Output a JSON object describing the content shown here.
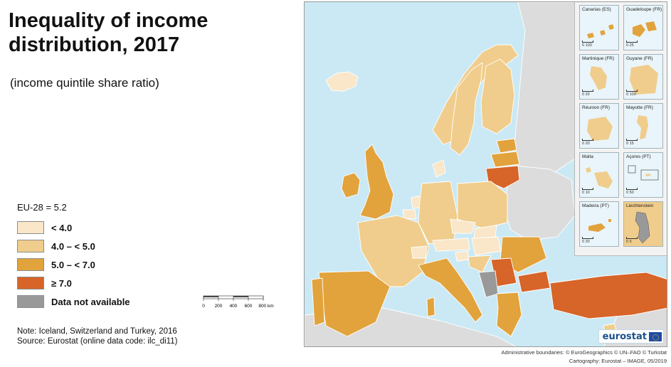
{
  "title": "Inequality of income distribution, 2017",
  "subtitle": "(income quintile share ratio)",
  "legend": {
    "eu_average": "EU-28 = 5.2",
    "items": [
      {
        "label": "< 4.0",
        "color": "#fae6c8"
      },
      {
        "label": "4.0 – < 5.0",
        "color": "#f0cd8c"
      },
      {
        "label": "5.0 – < 7.0",
        "color": "#e2a33c"
      },
      {
        "label": "≥ 7.0",
        "color": "#d76428"
      },
      {
        "label": "Data not available",
        "color": "#999999"
      }
    ]
  },
  "scale_bar": {
    "ticks": [
      "0",
      "200",
      "400",
      "600",
      "800 km"
    ]
  },
  "notes": {
    "note": "Note: Iceland, Switzerland and Turkey, 2016",
    "source": "Source: Eurostat (online data code: ilc_di11)"
  },
  "insets": [
    {
      "name": "Canarias (ES)",
      "scale": "0   100"
    },
    {
      "name": "Guadeloupe (FR)",
      "scale": "0   25"
    },
    {
      "name": "Martinique (FR)",
      "scale": "0   20"
    },
    {
      "name": "Guyane (FR)",
      "scale": "0   100"
    },
    {
      "name": "Réunion (FR)",
      "scale": "0   20"
    },
    {
      "name": "Mayotte (FR)",
      "scale": "0   15"
    },
    {
      "name": "Malta",
      "scale": "0   10"
    },
    {
      "name": "Açores (PT)",
      "scale": "0   50"
    },
    {
      "name": "Madeira (PT)",
      "scale": "0   20"
    },
    {
      "name": "Liechtenstein",
      "scale": "0   5"
    }
  ],
  "logo": "eurostat",
  "credits": {
    "boundaries": "Administrative boundaries: © EuroGeographics © UN–FAO © Turkstat",
    "cartography": "Cartography: Eurostat – IMAGE, 05/2019"
  },
  "colors": {
    "sea": "#cbe9f4",
    "non_eu_land": "#dcdcdc",
    "border": "#ffffff"
  }
}
